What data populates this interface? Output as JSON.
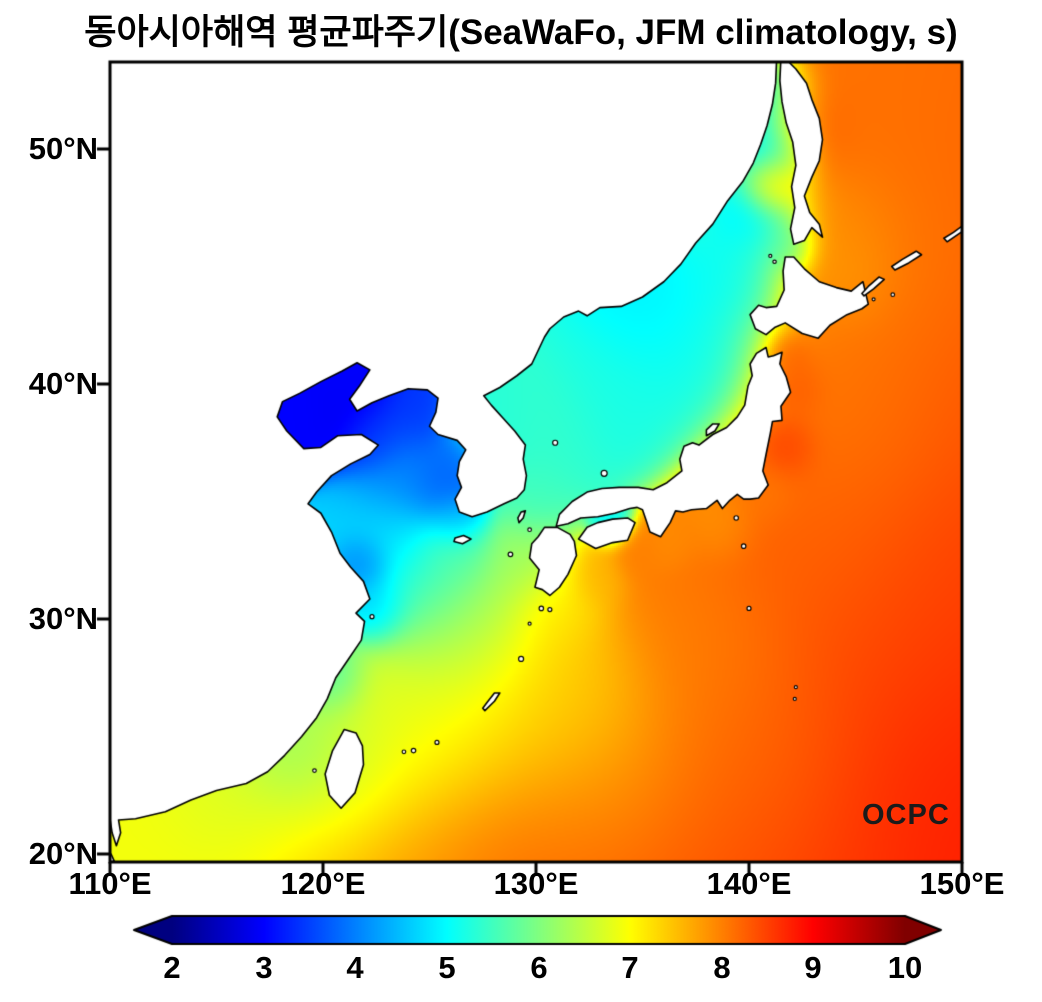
{
  "title": "동아시아해역 평균파주기(SeaWaFo, JFM climatology, s)",
  "logo": "OCPC",
  "axes": {
    "x_ticks": [
      "110°E",
      "120°E",
      "130°E",
      "140°E",
      "150°E"
    ],
    "x_values": [
      110,
      120,
      130,
      140,
      150
    ],
    "y_ticks": [
      "50°N",
      "40°N",
      "30°N",
      "20°N"
    ],
    "y_values": [
      50,
      40,
      30,
      20
    ]
  },
  "colorbar": {
    "ticks": [
      "2",
      "3",
      "4",
      "5",
      "6",
      "7",
      "8",
      "9",
      "10"
    ],
    "values": [
      2,
      3,
      4,
      5,
      6,
      7,
      8,
      9,
      10
    ],
    "min": 2,
    "max": 10,
    "colormap": "jet",
    "units": "s"
  },
  "colors": {
    "land": "#ffffff",
    "coastline": "#000000",
    "frame": "#000000",
    "title_text": "#000000",
    "cbar_min_color": "#000080",
    "cbar_max_color": "#800000"
  },
  "chart_data": {
    "type": "heatmap",
    "variable": "평균파주기 (mean wave period)",
    "units": "s",
    "source_label": "SeaWaFo",
    "season_label": "JFM climatology",
    "lon_range": [
      110,
      150
    ],
    "lat_range": [
      19.7,
      53.7
    ],
    "value_range": [
      2,
      10
    ],
    "points_format": [
      "lon_deg_E",
      "lat_deg_N",
      "mean_wave_period_s",
      "influence_radius_deg"
    ],
    "points": [
      [
        113,
        20.5,
        6.9,
        3.5
      ],
      [
        117,
        21.5,
        7.0,
        3
      ],
      [
        122,
        20,
        7.6,
        3.5
      ],
      [
        128,
        20,
        8.1,
        4
      ],
      [
        135,
        20,
        8.3,
        4
      ],
      [
        143,
        20,
        8.5,
        4
      ],
      [
        150,
        20,
        8.8,
        4
      ],
      [
        150,
        26,
        8.7,
        4
      ],
      [
        150,
        33,
        8.5,
        4
      ],
      [
        150,
        41,
        8.3,
        4
      ],
      [
        150,
        48,
        8.2,
        4
      ],
      [
        146,
        52,
        8.1,
        3
      ],
      [
        140,
        24,
        8.1,
        3
      ],
      [
        145,
        30,
        8.3,
        4
      ],
      [
        145,
        38,
        8.0,
        3
      ],
      [
        146,
        45,
        7.9,
        3
      ],
      [
        133,
        24,
        7.5,
        3
      ],
      [
        128,
        26,
        6.9,
        2.5
      ],
      [
        124,
        25,
        6.5,
        2.5
      ],
      [
        120.5,
        23.5,
        6.1,
        2
      ],
      [
        118.3,
        24.2,
        5.7,
        1.5
      ],
      [
        116,
        22.5,
        6.4,
        2
      ],
      [
        126.5,
        29.5,
        6.2,
        2
      ],
      [
        124.5,
        31.5,
        5.3,
        1.6
      ],
      [
        122.8,
        33.5,
        4.6,
        1.4
      ],
      [
        123.8,
        36.3,
        4.0,
        1.3
      ],
      [
        124.3,
        38.7,
        3.4,
        1.0
      ],
      [
        125.8,
        35.4,
        3.7,
        1.0
      ],
      [
        126.2,
        36.6,
        3.8,
        0.8
      ],
      [
        126.3,
        34.3,
        4.3,
        0.7
      ],
      [
        121.4,
        38.9,
        2.9,
        1.1
      ],
      [
        118.9,
        38.7,
        3.0,
        1.0
      ],
      [
        121.0,
        40.2,
        3.0,
        0.8
      ],
      [
        122.4,
        37.9,
        3.5,
        0.8
      ],
      [
        121.9,
        32.3,
        3.8,
        0.7
      ],
      [
        122.4,
        30.6,
        4.4,
        0.9
      ],
      [
        120.2,
        27.5,
        5.4,
        1.0
      ],
      [
        130.5,
        37.8,
        5.4,
        1.6
      ],
      [
        134,
        39.5,
        5.2,
        1.8
      ],
      [
        137.5,
        41,
        5.1,
        1.8
      ],
      [
        135.5,
        43,
        4.9,
        1.5
      ],
      [
        139.5,
        44.5,
        4.9,
        1.5
      ],
      [
        140.7,
        47.3,
        4.4,
        1.3
      ],
      [
        141.2,
        49.8,
        3.8,
        1.0
      ],
      [
        140.7,
        51.8,
        4.3,
        1.2
      ],
      [
        129.8,
        35.2,
        5.5,
        1.0
      ],
      [
        128,
        38.3,
        5.3,
        1.2
      ],
      [
        133.5,
        34.2,
        4.9,
        0.55
      ],
      [
        141.8,
        37.3,
        8.7,
        0.8
      ],
      [
        142.1,
        39.8,
        8.4,
        0.8
      ],
      [
        141.9,
        41.2,
        8.3,
        0.6
      ],
      [
        140.9,
        35.4,
        8.0,
        0.8
      ],
      [
        138.7,
        34.2,
        7.8,
        1.0
      ],
      [
        136.2,
        33.3,
        7.9,
        0.7
      ],
      [
        134.7,
        32.9,
        8.0,
        0.7
      ],
      [
        132.8,
        31.9,
        7.6,
        0.8
      ],
      [
        131,
        30.5,
        7.2,
        1.2
      ],
      [
        142.5,
        50.8,
        8.4,
        1.2
      ],
      [
        141.2,
        48.6,
        8.6,
        0.8
      ],
      [
        144.8,
        44.6,
        7.7,
        1.2
      ],
      [
        142.0,
        45.9,
        5.2,
        0.7
      ],
      [
        144.5,
        46.5,
        7.8,
        1.5
      ],
      [
        126.3,
        33.2,
        5.6,
        1.0
      ],
      [
        129.5,
        32.5,
        6.2,
        1.3
      ],
      [
        131.5,
        26.5,
        7.3,
        2
      ],
      [
        138,
        29,
        8.0,
        2.5
      ],
      [
        143,
        34,
        8.2,
        2.5
      ]
    ]
  }
}
